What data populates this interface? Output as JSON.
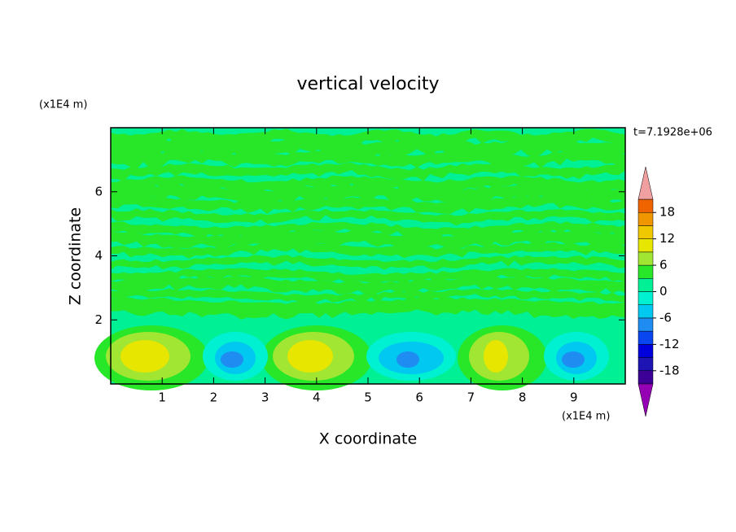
{
  "chart_data": {
    "type": "contour",
    "title": "vertical velocity",
    "xlabel": "X coordinate",
    "ylabel": "Z coordinate",
    "x_unit": "(x1E4 m)",
    "y_unit": "(x1E4 m)",
    "time_label": "t=7.1928e+06",
    "xlim": [
      0,
      10
    ],
    "ylim": [
      0,
      8
    ],
    "xticks": [
      1,
      2,
      3,
      4,
      5,
      6,
      7,
      8,
      9
    ],
    "yticks": [
      2,
      4,
      6
    ],
    "colorbar": {
      "levels": [
        -21,
        -18,
        -15,
        -12,
        -9,
        -6,
        -3,
        0,
        3,
        6,
        9,
        12,
        15,
        18,
        21
      ],
      "ticks": [
        18,
        12,
        6,
        0,
        -6,
        -12,
        -18
      ],
      "colors": [
        "#3c0096",
        "#1e14b4",
        "#0000dc",
        "#0a46f0",
        "#1e8cf0",
        "#00c8f0",
        "#00f0d2",
        "#00f096",
        "#28e628",
        "#a0e632",
        "#e6e600",
        "#f0c800",
        "#f09600",
        "#f06400",
        "#e61e1e"
      ],
      "under_color": "#9600b4",
      "over_color": "#f0a0a0"
    }
  }
}
